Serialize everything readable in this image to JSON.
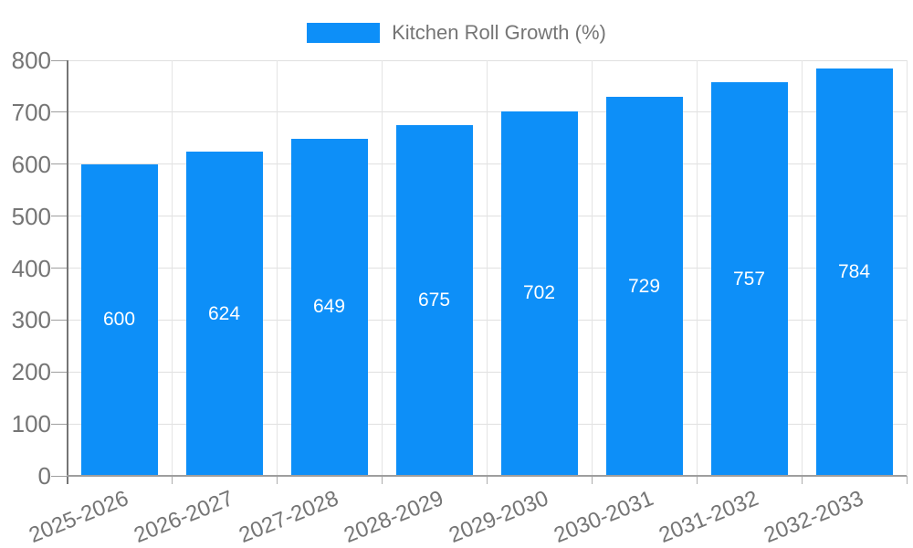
{
  "legend": {
    "label": "Kitchen Roll Growth (%)"
  },
  "chart_data": {
    "type": "bar",
    "title": "",
    "series_name": "Kitchen Roll Growth (%)",
    "categories": [
      "2025-2026",
      "2026-2027",
      "2027-2028",
      "2028-2029",
      "2029-2030",
      "2030-2031",
      "2031-2032",
      "2032-2033"
    ],
    "values": [
      600,
      624,
      649,
      675,
      702,
      729,
      757,
      784
    ],
    "value_labels": [
      "600",
      "624",
      "649",
      "675",
      "702",
      "729",
      "757",
      "784"
    ],
    "xlabel": "",
    "ylabel": "",
    "ylim": [
      0,
      800
    ],
    "ytick_step": 100,
    "ytick_labels": [
      "0",
      "100",
      "200",
      "300",
      "400",
      "500",
      "600",
      "700",
      "800"
    ],
    "grid": true,
    "legend_position": "top-center",
    "x_label_rotation_deg": -22,
    "bar_color": "#0D8FF8",
    "value_label_color": "#FFFFFF",
    "axis_text_color": "#757575",
    "gridline_color": "#E0E0E0",
    "axis_line_color": "#757575",
    "baseline_color": "#9E9E9E",
    "background_color": "#FFFFFF"
  }
}
